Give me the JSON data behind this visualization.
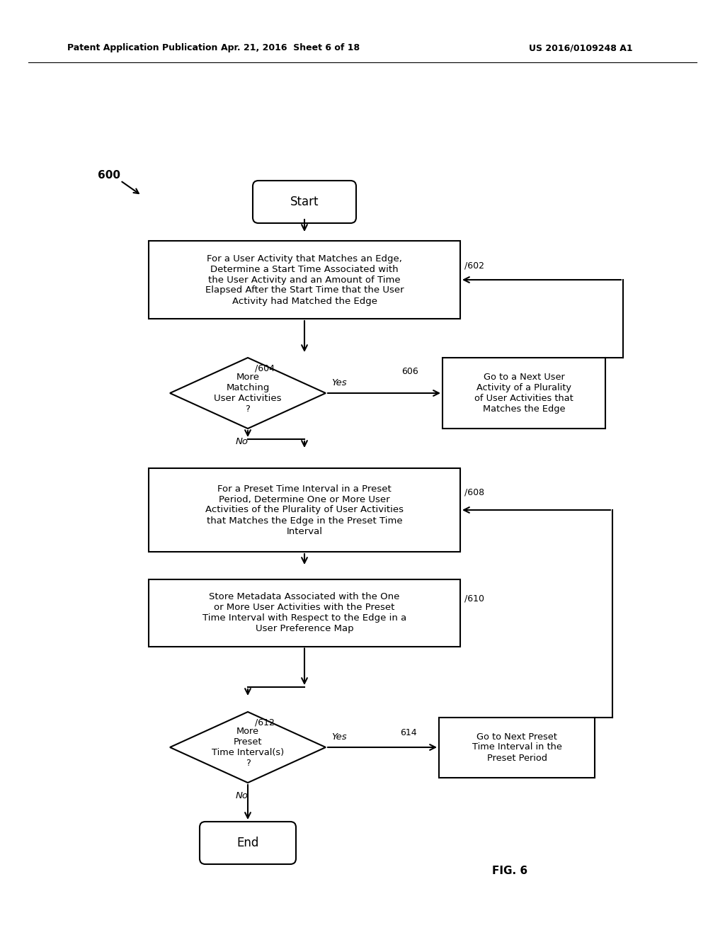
{
  "header_left": "Patent Application Publication",
  "header_mid": "Apr. 21, 2016  Sheet 6 of 18",
  "header_right": "US 2016/0109248 A1",
  "fig_label": "FIG. 6",
  "diagram_label": "600",
  "start_label": "Start",
  "end_label": "End",
  "box602_text": "For a User Activity that Matches an Edge,\nDetermine a Start Time Associated with\nthe User Activity and an Amount of Time\nElapsed After the Start Time that the User\nActivity had Matched the Edge",
  "box602_tag": "602",
  "diamond604_text": "More\nMatching\nUser Activities\n?",
  "diamond604_tag": "604",
  "box606_text": "Go to a Next User\nActivity of a Plurality\nof User Activities that\nMatches the Edge",
  "box606_tag": "606",
  "box608_text": "For a Preset Time Interval in a Preset\nPeriod, Determine One or More User\nActivities of the Plurality of User Activities\nthat Matches the Edge in the Preset Time\nInterval",
  "box608_tag": "608",
  "box610_text": "Store Metadata Associated with the One\nor More User Activities with the Preset\nTime Interval with Respect to the Edge in a\nUser Preference Map",
  "box610_tag": "610",
  "diamond612_text": "More\nPreset\nTime Interval(s)\n?",
  "diamond612_tag": "612",
  "box614_text": "Go to Next Preset\nTime Interval in the\nPreset Period",
  "box614_tag": "614",
  "yes_label": "Yes",
  "no_label": "No",
  "bg_color": "#ffffff"
}
